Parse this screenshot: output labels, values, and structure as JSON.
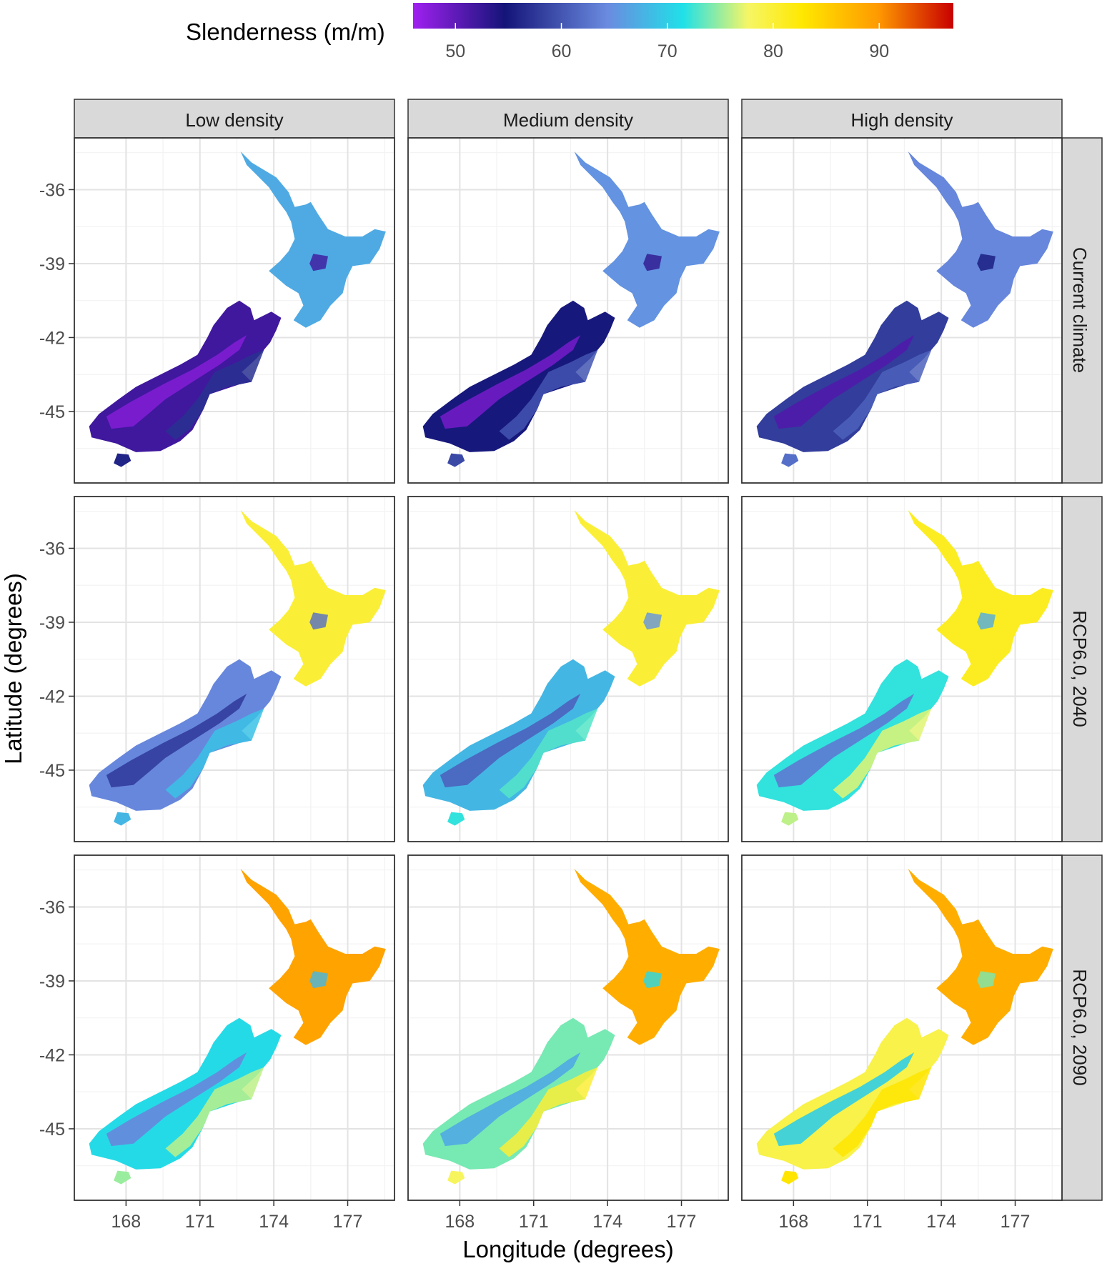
{
  "chart_data": {
    "type": "heatmap",
    "legend": {
      "title": "Slenderness (m/m)",
      "range": [
        46,
        97
      ],
      "ticks": [
        50,
        60,
        70,
        80,
        90
      ],
      "colors": [
        "#a020f0",
        "#141478",
        "#6a8be0",
        "#20e0e8",
        "#f6f666",
        "#ffe800",
        "#ff9a00",
        "#c80000"
      ],
      "placement": "top"
    },
    "xlabel": "Longitude (degrees)",
    "ylabel": "Latitude (degrees)",
    "x_ticks": [
      "168",
      "171",
      "174",
      "177"
    ],
    "x_tick_values": [
      168,
      171,
      174,
      177
    ],
    "y_ticks": [
      "-36",
      "-39",
      "-42",
      "-45"
    ],
    "y_tick_values": [
      -36,
      -39,
      -42,
      -45
    ],
    "xlim": [
      165.9,
      178.9
    ],
    "ylim": [
      -47.9,
      -33.9
    ],
    "columns": [
      "Low density",
      "Medium density",
      "High density"
    ],
    "rows": [
      "Current climate",
      "RCP6.0, 2040",
      "RCP6.0, 2090"
    ],
    "grid": true,
    "panels": [
      [
        {
          "north_island": 67,
          "south_island": 52,
          "mountains": 48,
          "east_coast": 57
        },
        {
          "north_island": 65,
          "south_island": 55,
          "mountains": 49,
          "east_coast": 60
        },
        {
          "north_island": 64,
          "south_island": 58,
          "mountains": 51,
          "east_coast": 61
        }
      ],
      [
        {
          "north_island": 80,
          "south_island": 64,
          "mountains": 58,
          "east_coast": 69
        },
        {
          "north_island": 80,
          "south_island": 68,
          "mountains": 61,
          "east_coast": 73
        },
        {
          "north_island": 81,
          "south_island": 72,
          "mountains": 63,
          "east_coast": 77
        }
      ],
      [
        {
          "north_island": 89,
          "south_island": 71,
          "mountains": 64,
          "east_coast": 76
        },
        {
          "north_island": 88,
          "south_island": 74,
          "mountains": 67,
          "east_coast": 80
        },
        {
          "north_island": 88,
          "south_island": 79,
          "mountains": 70,
          "east_coast": 83
        }
      ]
    ]
  }
}
